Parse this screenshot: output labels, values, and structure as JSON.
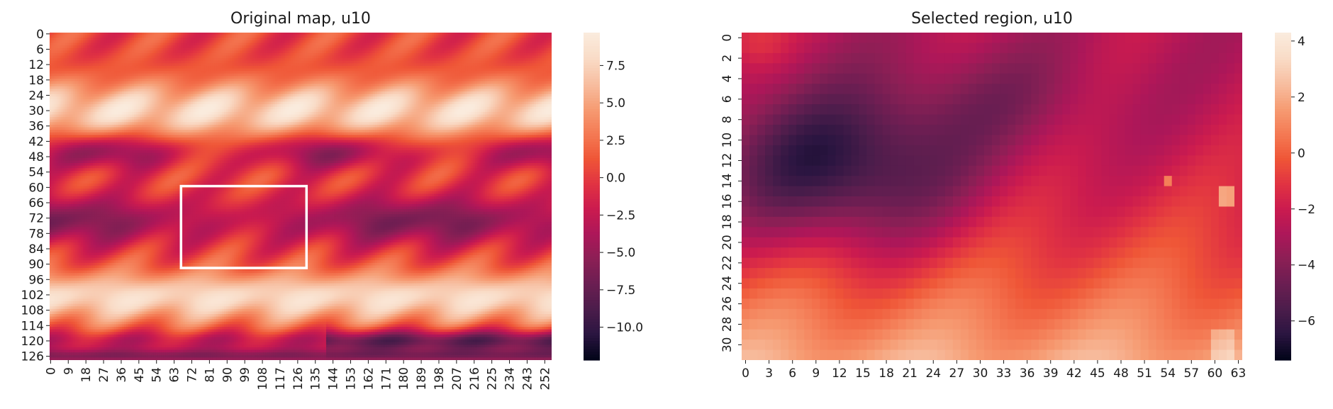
{
  "chart_data": [
    {
      "type": "heatmap",
      "title": "Original map, u10",
      "x_ticks": [
        "0",
        "9",
        "18",
        "27",
        "36",
        "45",
        "54",
        "63",
        "72",
        "81",
        "90",
        "99",
        "108",
        "117",
        "126",
        "135",
        "144",
        "153",
        "162",
        "171",
        "180",
        "189",
        "198",
        "207",
        "216",
        "225",
        "234",
        "243",
        "252"
      ],
      "y_ticks": [
        "0",
        "6",
        "12",
        "18",
        "24",
        "30",
        "36",
        "42",
        "48",
        "54",
        "60",
        "66",
        "72",
        "78",
        "84",
        "90",
        "96",
        "102",
        "108",
        "114",
        "120",
        "126"
      ],
      "x_range": [
        0,
        256
      ],
      "y_range": [
        0,
        128
      ],
      "colorbar": {
        "min": -12.2,
        "max": 9.7,
        "ticks": [
          "7.5",
          "5.0",
          "2.5",
          "0.0",
          "−2.5",
          "−5.0",
          "−7.5",
          "−10.0"
        ],
        "tick_values": [
          7.5,
          5.0,
          2.5,
          0.0,
          -2.5,
          -5.0,
          -7.5,
          -10.0
        ]
      },
      "selected_region": {
        "x": [
          67,
          131
        ],
        "y": [
          60,
          92
        ]
      },
      "grid": false
    },
    {
      "type": "heatmap",
      "title": "Selected region, u10",
      "x_ticks": [
        "0",
        "3",
        "6",
        "9",
        "12",
        "15",
        "18",
        "21",
        "24",
        "27",
        "30",
        "33",
        "36",
        "39",
        "42",
        "45",
        "48",
        "51",
        "54",
        "57",
        "60",
        "63"
      ],
      "y_ticks": [
        "0",
        "2",
        "4",
        "6",
        "8",
        "10",
        "12",
        "14",
        "16",
        "18",
        "20",
        "22",
        "24",
        "26",
        "28",
        "30"
      ],
      "x_range": [
        0,
        64
      ],
      "y_range": [
        0,
        32
      ],
      "colorbar": {
        "min": -7.4,
        "max": 4.3,
        "ticks": [
          "4",
          "2",
          "0",
          "−2",
          "−4",
          "−6"
        ],
        "tick_values": [
          4,
          2,
          0,
          -2,
          -4,
          -6
        ]
      },
      "grid": false
    }
  ],
  "colormap": [
    "#03051a",
    "#2b1541",
    "#4c1d4b",
    "#6b1e52",
    "#8c1f55",
    "#ad1759",
    "#cb1b4f",
    "#e13342",
    "#ef5637",
    "#f47a54",
    "#f69c73",
    "#f7bea0",
    "#f9dbc6",
    "#faebdd"
  ]
}
